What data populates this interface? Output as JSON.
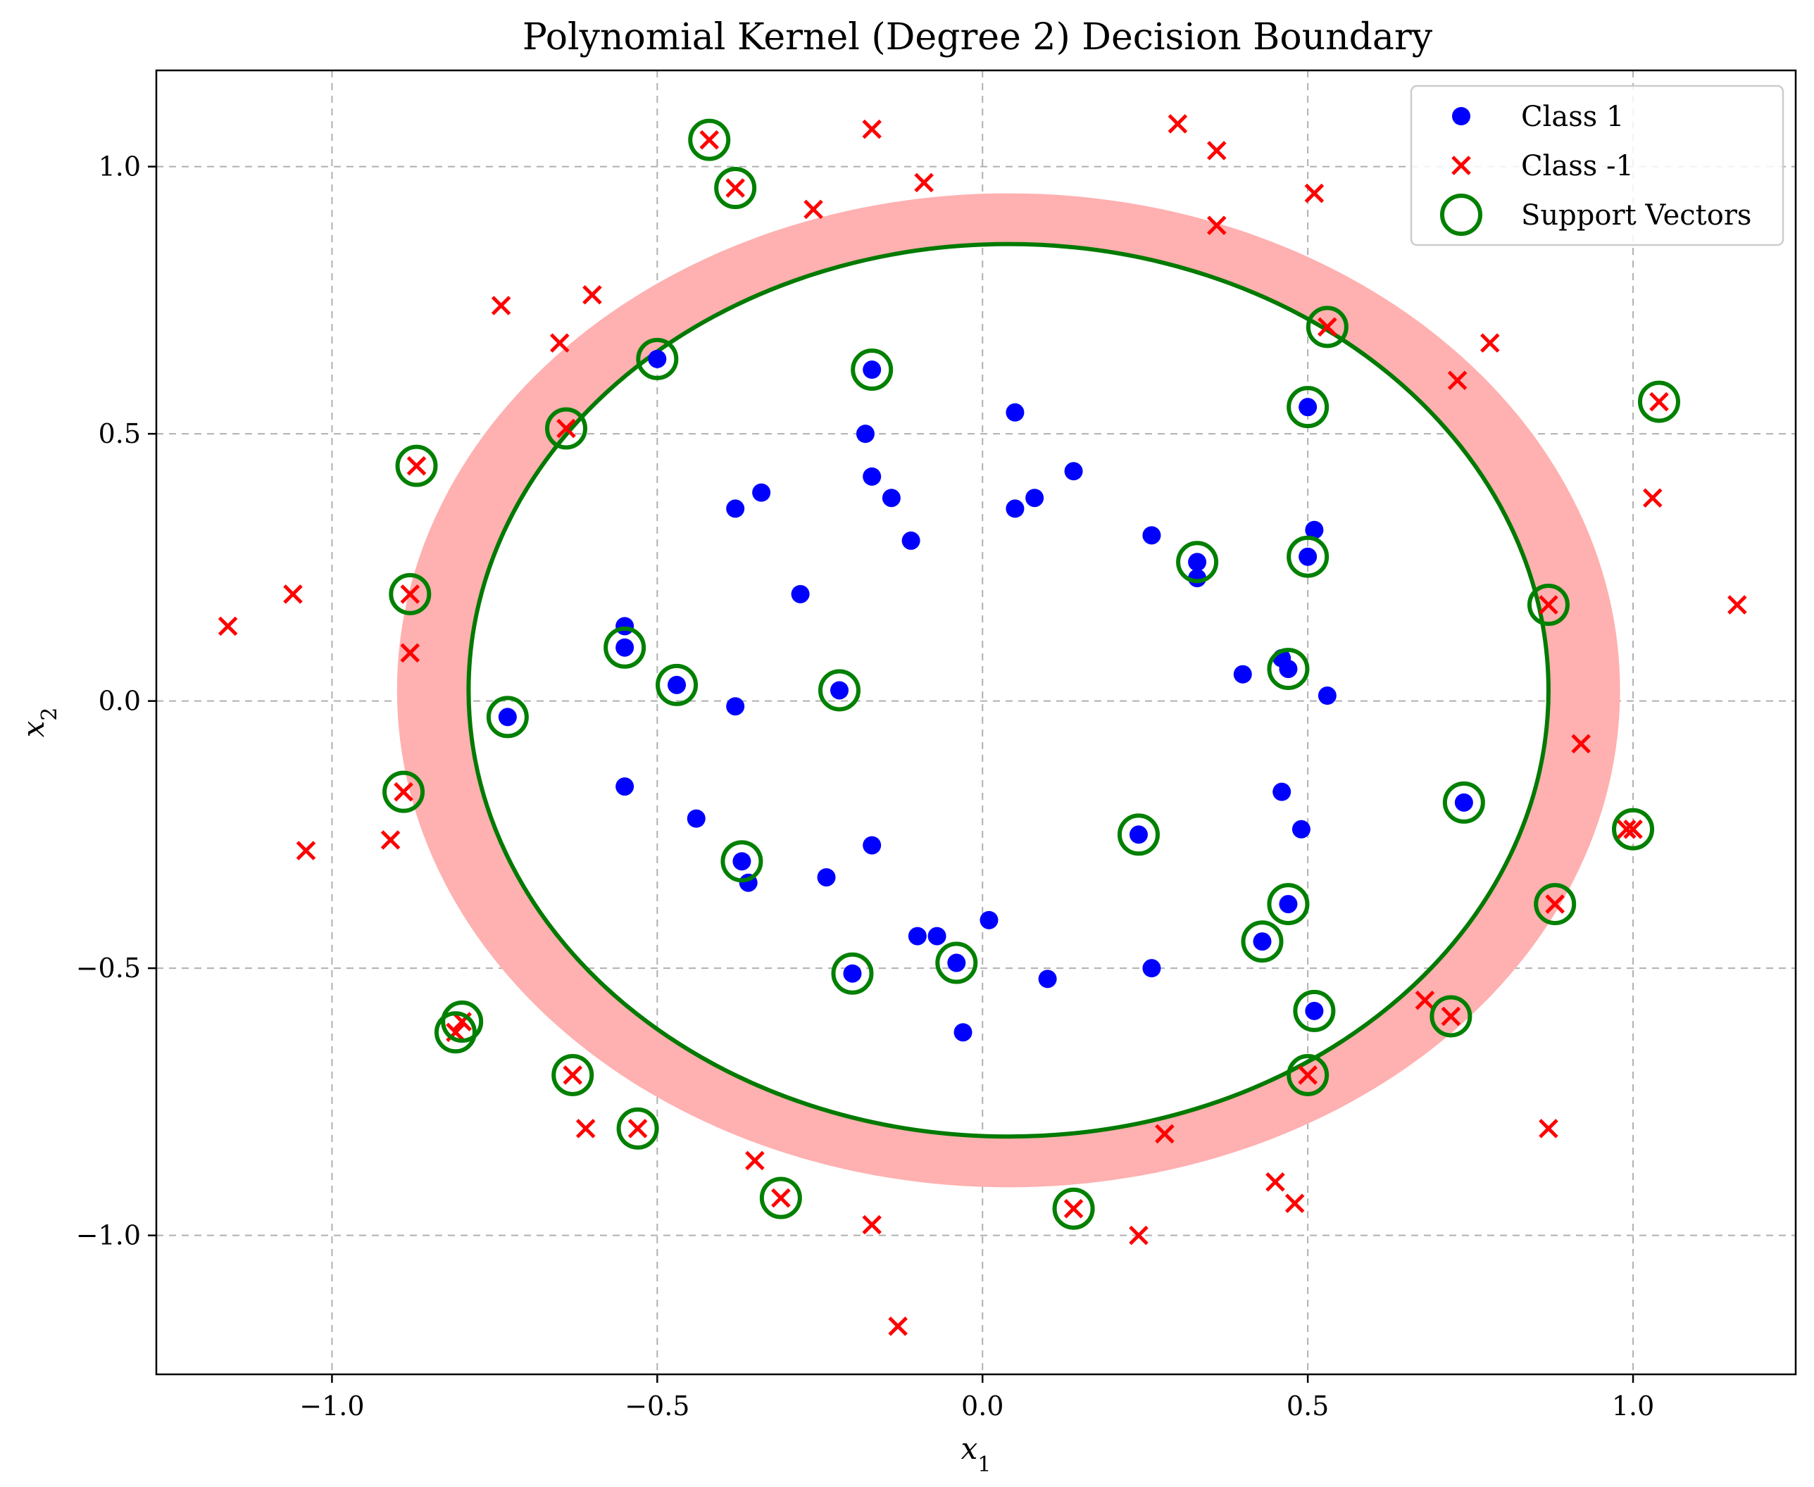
{
  "chart_data": {
    "type": "scatter",
    "title": "Polynomial Kernel (Degree 2) Decision Boundary",
    "xlabel": "x1",
    "ylabel": "x2",
    "xlim": [
      -1.27,
      1.25
    ],
    "ylim": [
      -1.26,
      1.18
    ],
    "x_ticks": [
      -1.0,
      -0.5,
      0.0,
      0.5,
      1.0
    ],
    "x_tick_labels": [
      "−1.0",
      "−0.5",
      "0.0",
      "0.5",
      "1.0"
    ],
    "y_ticks": [
      -1.0,
      -0.5,
      0.0,
      0.5,
      1.0
    ],
    "y_tick_labels": [
      "−1.0",
      "−0.5",
      "0.0",
      "0.5",
      "1.0"
    ],
    "grid": true,
    "legend_position": "top-right",
    "colors": {
      "class_1": "#0000ff",
      "class_neg1": "#ff0000",
      "support_vectors": "#008000",
      "boundary": "#007a00",
      "margin_band": "#ffb0b0"
    },
    "decision_boundary": {
      "center": [
        0.04,
        0.02
      ],
      "semi_axis_x": 0.83,
      "semi_axis_y": 0.835
    },
    "margin_band": {
      "center": [
        0.04,
        0.02
      ],
      "outer_semi_axes": [
        0.94,
        0.93
      ],
      "inner_semi_axes": [
        0.83,
        0.835
      ]
    },
    "series": [
      {
        "name": "Class 1",
        "marker": "circle",
        "points": [
          [
            -0.5,
            0.64
          ],
          [
            -0.17,
            0.62
          ],
          [
            0.05,
            0.54
          ],
          [
            -0.18,
            0.5
          ],
          [
            -0.17,
            0.42
          ],
          [
            -0.34,
            0.39
          ],
          [
            -0.38,
            0.36
          ],
          [
            -0.14,
            0.38
          ],
          [
            0.14,
            0.43
          ],
          [
            0.08,
            0.38
          ],
          [
            0.05,
            0.36
          ],
          [
            -0.11,
            0.3
          ],
          [
            0.26,
            0.31
          ],
          [
            0.33,
            0.26
          ],
          [
            0.33,
            0.23
          ],
          [
            0.51,
            0.32
          ],
          [
            0.5,
            0.27
          ],
          [
            0.5,
            0.55
          ],
          [
            -0.28,
            0.2
          ],
          [
            -0.55,
            0.14
          ],
          [
            -0.55,
            0.1
          ],
          [
            -0.47,
            0.03
          ],
          [
            -0.22,
            0.02
          ],
          [
            -0.38,
            -0.01
          ],
          [
            -0.73,
            -0.03
          ],
          [
            0.4,
            0.05
          ],
          [
            0.46,
            0.08
          ],
          [
            0.47,
            0.06
          ],
          [
            0.53,
            0.01
          ],
          [
            -0.55,
            -0.16
          ],
          [
            -0.44,
            -0.22
          ],
          [
            -0.37,
            -0.3
          ],
          [
            -0.36,
            -0.34
          ],
          [
            -0.24,
            -0.33
          ],
          [
            -0.17,
            -0.27
          ],
          [
            0.24,
            -0.25
          ],
          [
            0.46,
            -0.17
          ],
          [
            0.49,
            -0.24
          ],
          [
            0.47,
            -0.38
          ],
          [
            0.43,
            -0.45
          ],
          [
            -0.1,
            -0.44
          ],
          [
            -0.07,
            -0.44
          ],
          [
            0.01,
            -0.41
          ],
          [
            -0.04,
            -0.49
          ],
          [
            -0.2,
            -0.51
          ],
          [
            0.1,
            -0.52
          ],
          [
            0.26,
            -0.5
          ],
          [
            0.51,
            -0.58
          ],
          [
            -0.03,
            -0.62
          ],
          [
            0.74,
            -0.19
          ]
        ]
      },
      {
        "name": "Class -1",
        "marker": "x",
        "points": [
          [
            -0.42,
            1.05
          ],
          [
            -0.17,
            1.07
          ],
          [
            -0.38,
            0.96
          ],
          [
            -0.26,
            0.92
          ],
          [
            -0.09,
            0.97
          ],
          [
            0.3,
            1.08
          ],
          [
            0.36,
            1.03
          ],
          [
            0.51,
            0.95
          ],
          [
            0.36,
            0.89
          ],
          [
            -0.74,
            0.74
          ],
          [
            -0.6,
            0.76
          ],
          [
            -0.65,
            0.67
          ],
          [
            -0.64,
            0.51
          ],
          [
            -0.87,
            0.44
          ],
          [
            0.53,
            0.7
          ],
          [
            0.73,
            0.6
          ],
          [
            0.78,
            0.67
          ],
          [
            1.04,
            0.56
          ],
          [
            1.03,
            0.38
          ],
          [
            1.16,
            0.18
          ],
          [
            0.87,
            0.18
          ],
          [
            -1.06,
            0.2
          ],
          [
            -1.16,
            0.14
          ],
          [
            -0.88,
            0.2
          ],
          [
            -0.88,
            0.09
          ],
          [
            0.92,
            -0.08
          ],
          [
            -0.89,
            -0.17
          ],
          [
            -1.04,
            -0.28
          ],
          [
            -0.91,
            -0.26
          ],
          [
            1.0,
            -0.24
          ],
          [
            0.99,
            -0.24
          ],
          [
            0.88,
            -0.38
          ],
          [
            0.68,
            -0.56
          ],
          [
            0.72,
            -0.59
          ],
          [
            0.5,
            -0.7
          ],
          [
            -0.8,
            -0.6
          ],
          [
            -0.81,
            -0.62
          ],
          [
            -0.63,
            -0.7
          ],
          [
            -0.61,
            -0.8
          ],
          [
            -0.53,
            -0.8
          ],
          [
            -0.35,
            -0.86
          ],
          [
            -0.31,
            -0.93
          ],
          [
            0.28,
            -0.81
          ],
          [
            0.45,
            -0.9
          ],
          [
            0.48,
            -0.94
          ],
          [
            0.87,
            -0.8
          ],
          [
            0.14,
            -0.95
          ],
          [
            0.24,
            -1.0
          ],
          [
            -0.17,
            -0.98
          ],
          [
            -0.13,
            -1.17
          ]
        ]
      },
      {
        "name": "Support Vectors",
        "marker": "open-circle",
        "points": [
          [
            -0.42,
            1.05
          ],
          [
            -0.38,
            0.96
          ],
          [
            -0.5,
            0.64
          ],
          [
            -0.64,
            0.51
          ],
          [
            -0.17,
            0.62
          ],
          [
            -0.87,
            0.44
          ],
          [
            0.53,
            0.7
          ],
          [
            0.5,
            0.55
          ],
          [
            1.04,
            0.56
          ],
          [
            0.33,
            0.26
          ],
          [
            0.5,
            0.27
          ],
          [
            0.87,
            0.18
          ],
          [
            -0.88,
            0.2
          ],
          [
            -0.55,
            0.1
          ],
          [
            -0.47,
            0.03
          ],
          [
            -0.22,
            0.02
          ],
          [
            -0.73,
            -0.03
          ],
          [
            0.47,
            0.06
          ],
          [
            -0.89,
            -0.17
          ],
          [
            0.74,
            -0.19
          ],
          [
            0.24,
            -0.25
          ],
          [
            1.0,
            -0.24
          ],
          [
            -0.37,
            -0.3
          ],
          [
            0.47,
            -0.38
          ],
          [
            0.88,
            -0.38
          ],
          [
            0.43,
            -0.45
          ],
          [
            -0.04,
            -0.49
          ],
          [
            -0.2,
            -0.51
          ],
          [
            0.51,
            -0.58
          ],
          [
            0.72,
            -0.59
          ],
          [
            -0.8,
            -0.6
          ],
          [
            -0.81,
            -0.62
          ],
          [
            0.5,
            -0.7
          ],
          [
            -0.63,
            -0.7
          ],
          [
            -0.53,
            -0.8
          ],
          [
            -0.31,
            -0.93
          ],
          [
            0.14,
            -0.95
          ]
        ]
      }
    ]
  }
}
